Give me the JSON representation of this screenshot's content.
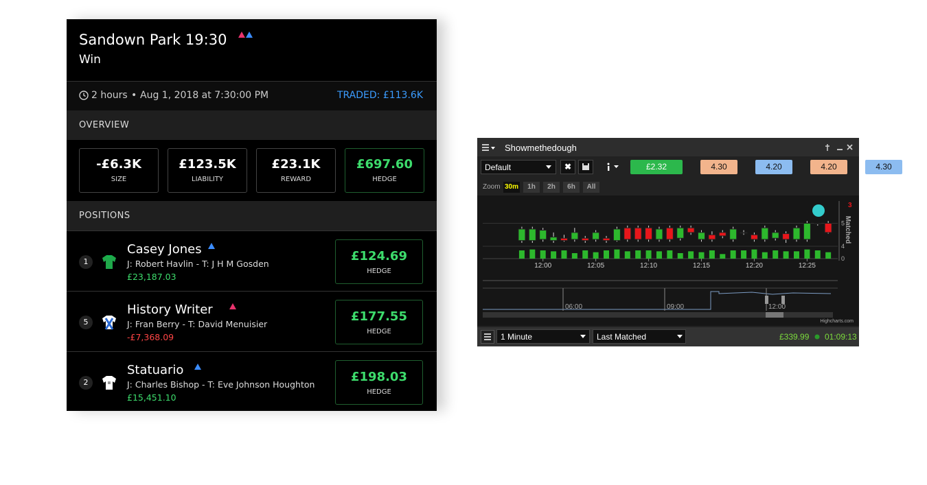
{
  "market": {
    "title": "Sandown Park 19:30",
    "subtitle": "Win",
    "duration": "2 hours",
    "separator": "•",
    "date": "Aug 1, 2018 at 7:30:00 PM",
    "traded": "TRADED: £113.6K",
    "overview_label": "OVERVIEW",
    "stats": [
      {
        "value": "-£6.3K",
        "label": "SIZE"
      },
      {
        "value": "£123.5K",
        "label": "LIABILITY"
      },
      {
        "value": "£23.1K",
        "label": "REWARD"
      },
      {
        "value": "£697.60",
        "label": "HEDGE"
      }
    ],
    "positions_label": "POSITIONS",
    "positions": [
      {
        "number": "1",
        "name": "Casey Jones",
        "details": "J: Robert Havlin - T: J H M Gosden",
        "amount": "£23,187.03",
        "hedge": "£124.69",
        "hedge_label": "HEDGE"
      },
      {
        "number": "5",
        "name": "History Writer",
        "details": "J: Fran Berry - T: David Menuisier",
        "amount": "-£7,368.09",
        "hedge": "£177.55",
        "hedge_label": "HEDGE"
      },
      {
        "number": "2",
        "name": "Statuario",
        "details": "J: Charles Bishop - T: Eve Johnson Houghton",
        "amount": "£15,451.10",
        "hedge": "£198.03",
        "hedge_label": "HEDGE"
      }
    ]
  },
  "widget": {
    "title": "Showmethedough",
    "profile": "Default",
    "prices": [
      "£2.32",
      "4.30",
      "4.20",
      "4.20",
      "4.30"
    ],
    "zoom_label": "Zoom",
    "zoom_buttons": [
      "30m",
      "1h",
      "2h",
      "6h",
      "All"
    ],
    "interval": "1 Minute",
    "mode": "Last Matched",
    "balance": "£339.99",
    "clock": "01:09:13",
    "credit": "Highcharts.com",
    "chart": {
      "type": "candlestick",
      "axis_title": "Matched",
      "last_flag": "3",
      "up_color": "#2db82d",
      "down_color": "#e8161b",
      "x": [
        -2,
        -1,
        0,
        1,
        2,
        3,
        4,
        5,
        6,
        7,
        8,
        9,
        10,
        11,
        12,
        13,
        14,
        15,
        16,
        17,
        18,
        19,
        20,
        21,
        22,
        23,
        24,
        25,
        26,
        27
      ],
      "open": [
        4.25,
        4.25,
        4.3,
        4.25,
        4.35,
        4.3,
        4.35,
        4.3,
        4.35,
        4.25,
        4.8,
        4.8,
        4.8,
        4.3,
        4.8,
        4.35,
        4.8,
        4.3,
        4.5,
        4.6,
        4.3,
        4.6,
        4.5,
        4.3,
        4.35,
        4.55,
        4.3,
        4.3,
        5.0,
        5.0
      ],
      "close": [
        4.75,
        4.75,
        4.7,
        4.4,
        4.25,
        4.6,
        4.25,
        4.6,
        4.25,
        4.75,
        4.3,
        4.3,
        4.3,
        4.75,
        4.3,
        4.8,
        4.6,
        4.6,
        4.3,
        4.45,
        4.75,
        4.6,
        4.3,
        4.8,
        4.6,
        4.3,
        4.8,
        5.0,
        5.0,
        4.6
      ],
      "high": [
        4.85,
        4.85,
        4.8,
        4.6,
        4.5,
        4.8,
        4.45,
        4.7,
        4.45,
        4.85,
        4.9,
        4.9,
        4.9,
        4.85,
        4.9,
        4.9,
        4.9,
        4.7,
        4.65,
        4.7,
        4.85,
        4.7,
        4.6,
        4.9,
        4.7,
        4.65,
        4.9,
        5.1,
        5.0,
        5.1
      ],
      "low": [
        4.15,
        4.15,
        4.2,
        4.15,
        4.2,
        4.2,
        4.15,
        4.2,
        4.15,
        4.2,
        4.2,
        4.2,
        4.2,
        4.2,
        4.2,
        4.25,
        4.5,
        4.2,
        4.2,
        4.35,
        4.2,
        4.5,
        4.2,
        4.2,
        4.25,
        4.15,
        4.2,
        4.2,
        4.9,
        4.55
      ],
      "volume": [
        9,
        10,
        9,
        8,
        9,
        6,
        9,
        7,
        9,
        10,
        8,
        9,
        9,
        8,
        9,
        6,
        8,
        7,
        9,
        5,
        9,
        9,
        10,
        7,
        9,
        8,
        8,
        10,
        9,
        7
      ],
      "ylim": [
        3.94,
        5.97
      ],
      "yticks": [
        4,
        5
      ],
      "volume_ylim": [
        0,
        12
      ],
      "volume_ticks": [
        0
      ],
      "xlim": [
        -5.7,
        27.9
      ],
      "xticks": [
        {
          "value": 0,
          "label": "12:00"
        },
        {
          "value": 5,
          "label": "12:05"
        },
        {
          "value": 10,
          "label": "12:10"
        },
        {
          "value": 15,
          "label": "12:15"
        },
        {
          "value": 20,
          "label": "12:20"
        },
        {
          "value": 25,
          "label": "12:25"
        }
      ],
      "navigator_ticks": [
        "06:00",
        "09:00",
        "12:00"
      ]
    }
  }
}
